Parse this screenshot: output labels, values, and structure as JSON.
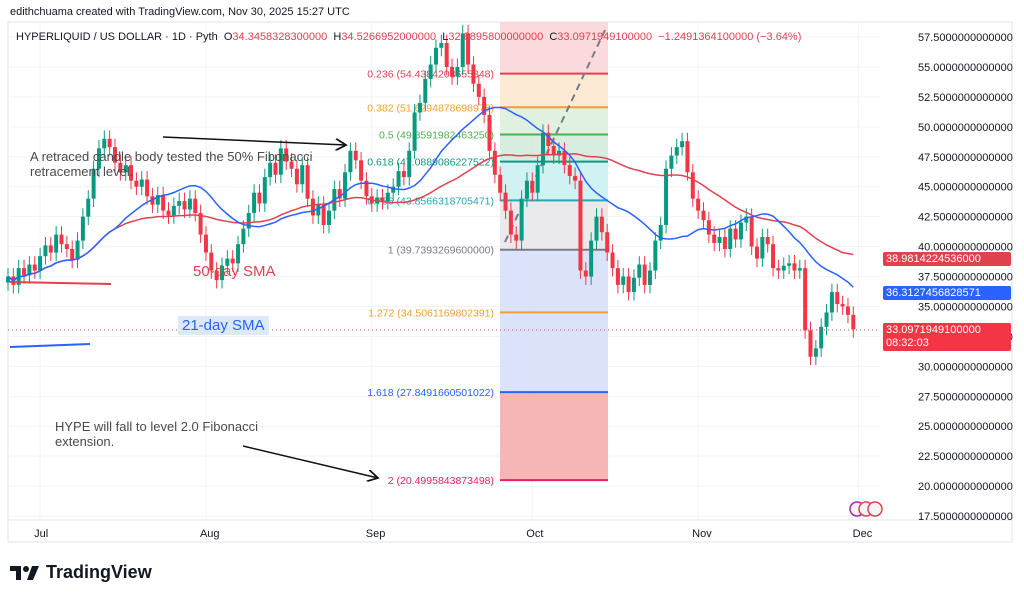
{
  "header": {
    "credit": "edithchuama created with TradingView.com, Nov 30, 2025 15:27 UTC"
  },
  "legend": {
    "symbol": "HYPERLIQUID / US DOLLAR · 1D · Pyth",
    "open_label": "O",
    "open": "34.3458328300000",
    "high_label": "H",
    "high": "34.5266952000000",
    "low_label": "L",
    "low": "32.8895800000000",
    "close_label": "C",
    "close": "33.0971949100000",
    "change": "−1.2491364100000 (−3.64%)"
  },
  "annotations": {
    "retrace_note": "A retraced candle body tested the 50% Fibonacci retracement level.",
    "sma50_label": "50-day SMA",
    "sma21_label": "21-day SMA",
    "forecast_note": "HYPE  will fall to level 2.0 Fibonacci extension."
  },
  "price_tags": {
    "sma50": "38.9814224536000",
    "sma21": "36.3127456828571",
    "last": "33.0971949100000",
    "countdown": "08:32:03"
  },
  "colors": {
    "up": "#089981",
    "down": "#f23645",
    "sma21": "#2962ff",
    "sma50": "#e0414f"
  },
  "logo": {
    "text": "TradingView"
  },
  "chart_data": {
    "type": "candlestick",
    "title": "HYPERLIQUID / US DOLLAR · 1D · Pyth",
    "first_date": "2025-06-25",
    "last_date": "2025-11-30",
    "closes": [
      37.5,
      36.8,
      38.2,
      37.6,
      38.5,
      38.0,
      39.2,
      40.1,
      39.5,
      41.0,
      40.2,
      39.8,
      38.9,
      40.5,
      42.5,
      44.0,
      46.5,
      48.2,
      49.0,
      48.3,
      47.0,
      46.2,
      46.8,
      45.5,
      45.0,
      45.6,
      44.2,
      43.5,
      44.3,
      43.0,
      42.6,
      43.4,
      43.8,
      43.1,
      44.0,
      42.8,
      41.0,
      39.5,
      38.0,
      37.2,
      38.4,
      39.0,
      38.6,
      40.2,
      41.5,
      42.8,
      44.5,
      43.6,
      45.8,
      47.0,
      46.0,
      48.2,
      47.1,
      46.5,
      45.2,
      46.8,
      44.0,
      42.6,
      43.5,
      41.8,
      43.0,
      44.8,
      44.0,
      46.2,
      48.0,
      47.2,
      45.5,
      44.2,
      43.6,
      44.1,
      43.8,
      44.5,
      45.0,
      46.3,
      45.8,
      48.0,
      51.2,
      52.0,
      54.0,
      55.2,
      56.6,
      57.0,
      55.0,
      54.2,
      55.0,
      57.8,
      55.2,
      53.6,
      52.5,
      51.0,
      48.0,
      46.0,
      44.5,
      43.0,
      41.0,
      40.5,
      44.0,
      45.5,
      44.5,
      46.8,
      49.5,
      48.4,
      47.6,
      48.0,
      46.8,
      45.9,
      45.5,
      38.0,
      37.5,
      40.5,
      42.5,
      41.2,
      39.5,
      38.2,
      36.8,
      37.5,
      36.2,
      37.4,
      38.5,
      36.8,
      38.0,
      40.5,
      41.8,
      46.5,
      47.6,
      48.3,
      48.8,
      46.2,
      44.0,
      43.0,
      42.2,
      41.0,
      40.3,
      40.8,
      39.8,
      41.5,
      40.6,
      42.0,
      42.5,
      40.0,
      39.0,
      40.8,
      40.2,
      38.2,
      38.0,
      38.4,
      38.6,
      38.0,
      38.2,
      33.0,
      30.8,
      31.5,
      33.3,
      34.5,
      36.2,
      35.2,
      35.0,
      34.3,
      33.1
    ],
    "indicators": [
      {
        "name": "21-day SMA",
        "period": 21
      },
      {
        "name": "50-day SMA",
        "period": 50
      }
    ],
    "x_ticks": [
      "Jul",
      "Aug",
      "Sep",
      "Oct",
      "Nov",
      "Dec"
    ],
    "y_ticks": [
      "57.5000000000000",
      "55.0000000000000",
      "52.5000000000000",
      "50.0000000000000",
      "47.5000000000000",
      "45.0000000000000",
      "42.5000000000000",
      "40.0000000000000",
      "37.5000000000000",
      "35.0000000000000",
      "32.5000000000000",
      "30.0000000000000",
      "27.5000000000000",
      "25.0000000000000",
      "22.5000000000000",
      "20.0000000000000",
      "17.5000000000000"
    ],
    "ylim": [
      17.5,
      57.5
    ],
    "fibonacci": [
      {
        "level": 0.236,
        "price": 54.4384,
        "label": "0.236 (54.4384203655348)",
        "color": "#e0414f"
      },
      {
        "level": 0.382,
        "price": 51.6295,
        "label": "0.382 (51.6294878698978)",
        "color": "#f0a030"
      },
      {
        "level": 0.5,
        "price": 49.3592,
        "label": "0.5 (49.3591982463250)",
        "color": "#4caf50"
      },
      {
        "level": 0.618,
        "price": 47.0889,
        "label": "0.618 (47.0889086227522)",
        "color": "#089981"
      },
      {
        "level": 0.786,
        "price": 43.8566,
        "label": "0.786 (43.8566318705471)",
        "color": "#26a6b8"
      },
      {
        "level": 1,
        "price": 39.7393,
        "label": "1 (39.7393269600000)",
        "color": "#787b86"
      },
      {
        "level": 1.272,
        "price": 34.5061,
        "label": "1.272 (34.5061169802391)",
        "color": "#f0a030"
      },
      {
        "level": 1.618,
        "price": 27.8492,
        "label": "1.618 (27.8491660501022)",
        "color": "#2962ff"
      },
      {
        "level": 2,
        "price": 20.4996,
        "label": "2 (20.4995843873498)",
        "color": "#e91e63"
      }
    ],
    "fib_zone_colors": [
      "#f9d3d6",
      "#fde6cc",
      "#dcefd9",
      "#cfeadb",
      "#c9f0f0",
      "#e6e6e9",
      "#d3def9",
      "#f5a9a9"
    ],
    "fib_top_price": 58.9795
  }
}
